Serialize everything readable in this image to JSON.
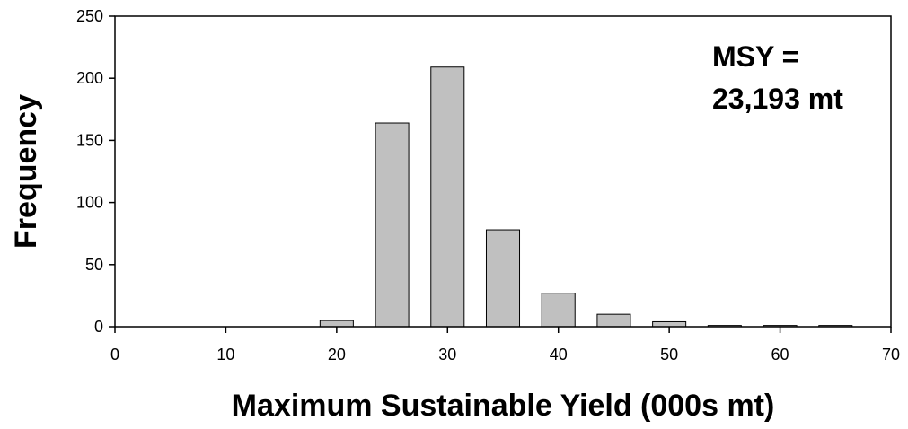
{
  "chart_data": {
    "type": "bar",
    "title": "",
    "xlabel": "Maximum Sustainable Yield (000s mt)",
    "ylabel": "Frequency",
    "xlim": [
      0,
      70
    ],
    "ylim": [
      0,
      250
    ],
    "xticks": [
      "0",
      "10",
      "20",
      "30",
      "40",
      "50",
      "60",
      "70"
    ],
    "yticks": [
      "0",
      "50",
      "100",
      "150",
      "200",
      "250"
    ],
    "bin_width": 3,
    "bins": [
      {
        "center": 20,
        "value": 5
      },
      {
        "center": 25,
        "value": 164
      },
      {
        "center": 30,
        "value": 209
      },
      {
        "center": 35,
        "value": 78
      },
      {
        "center": 40,
        "value": 27
      },
      {
        "center": 45,
        "value": 10
      },
      {
        "center": 50,
        "value": 4
      },
      {
        "center": 55,
        "value": 1
      },
      {
        "center": 60,
        "value": 1
      },
      {
        "center": 65,
        "value": 1
      }
    ],
    "annotation": [
      "MSY =",
      "23,193 mt"
    ],
    "grid": false,
    "colors": {
      "bar_fill": "#c0c0c0",
      "bar_stroke": "#000000",
      "axis": "#000000"
    }
  }
}
